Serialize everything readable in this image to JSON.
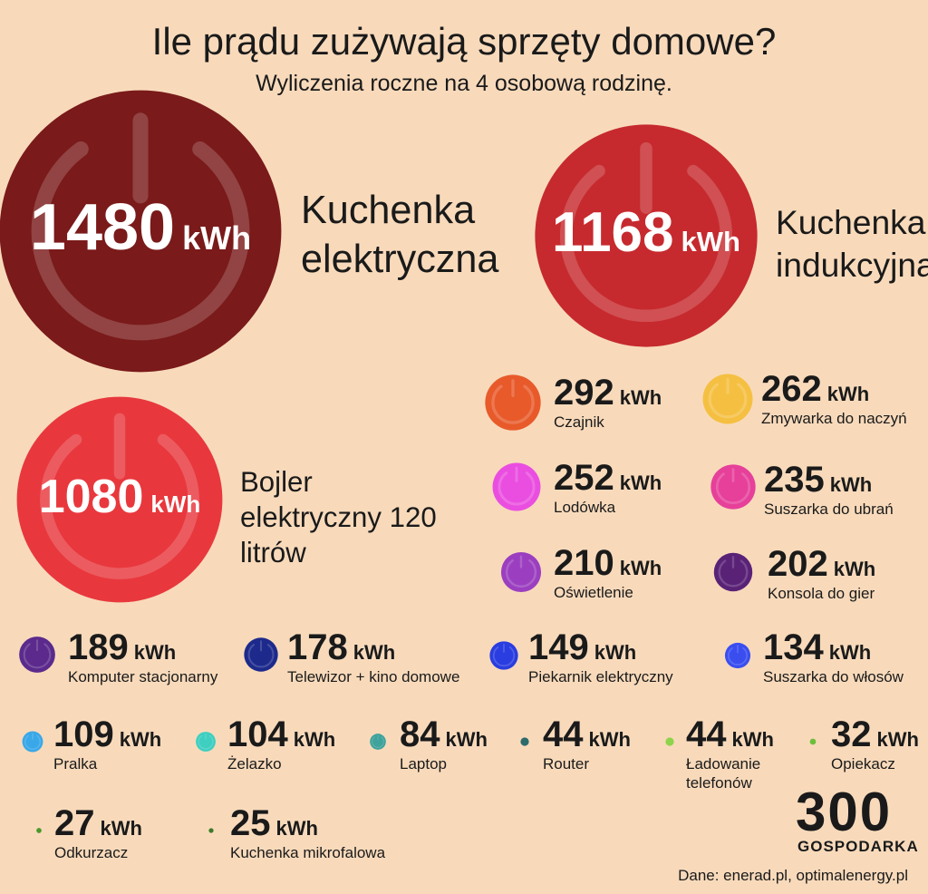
{
  "chart_data": {
    "type": "bubble",
    "title": "Ile prądu zużywają sprzęty domowe?",
    "subtitle": "Wyliczenia roczne na 4 osobową rodzinę.",
    "unit": "kWh",
    "categories": [
      "Kuchenka elektryczna",
      "Kuchenka indukcyjna",
      "Bojler elektryczny 120 litrów",
      "Czajnik",
      "Zmywarka do naczyń",
      "Lodówka",
      "Suszarka do ubrań",
      "Oświetlenie",
      "Konsola do gier",
      "Komputer stacjonarny",
      "Telewizor + kino domowe",
      "Piekarnik elektryczny",
      "Suszarka do włosów",
      "Pralka",
      "Żelazko",
      "Laptop",
      "Router",
      "Ładowanie telefonów",
      "Opiekacz",
      "Odkurzacz",
      "Kuchenka mikrofalowa"
    ],
    "values": [
      1480,
      1168,
      1080,
      292,
      262,
      252,
      235,
      210,
      202,
      189,
      178,
      149,
      134,
      109,
      104,
      84,
      44,
      44,
      32,
      27,
      25
    ],
    "colors": [
      "#7a1a1a",
      "#c62a2e",
      "#e8383d",
      "#e85a2a",
      "#f5c042",
      "#ea4ee0",
      "#e6409a",
      "#9b3fc0",
      "#5a2277",
      "#5b2a8c",
      "#1d2a8c",
      "#2a3de0",
      "#3a4ef0",
      "#3aa8e8",
      "#3ecfc0",
      "#3fa39c",
      "#2d6b6b",
      "#8ed44a",
      "#6cbf3a",
      "#4a9a2a",
      "#3d7a2a"
    ],
    "source": "Dane: enerad.pl, optimalenergy.pl",
    "logo": {
      "number": "300",
      "text": "GOSPODARKA"
    }
  }
}
